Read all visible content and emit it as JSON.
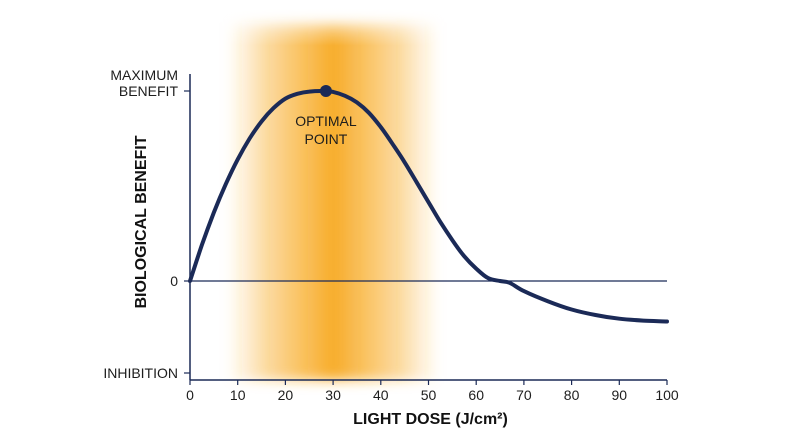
{
  "chart_data": {
    "type": "line",
    "title": "",
    "xlabel": "LIGHT DOSE (J/cm²)",
    "ylabel": "BIOLOGICAL BENEFIT",
    "x_ticks": [
      "0",
      "10",
      "20",
      "30",
      "40",
      "50",
      "60",
      "70",
      "80",
      "90",
      "100"
    ],
    "xlim": [
      0,
      100
    ],
    "ylim": [
      -1,
      1
    ],
    "y_tick_labels": [
      {
        "value": 1,
        "lines": [
          "MAXIMUM",
          "BENEFIT"
        ]
      },
      {
        "value": 0,
        "lines": [
          "0"
        ]
      },
      {
        "value": -1,
        "lines": [
          "INHIBITION"
        ]
      }
    ],
    "grid": false,
    "highlight_band": {
      "x_range": [
        10,
        50
      ],
      "peak_x": 28.5,
      "color": "#f7a81e"
    },
    "series": [
      {
        "color": "#1b2a57",
        "points": [
          [
            0,
            0
          ],
          [
            2.5,
            0.19
          ],
          [
            5,
            0.36
          ],
          [
            7.5,
            0.51
          ],
          [
            10,
            0.64
          ],
          [
            12.5,
            0.75
          ],
          [
            15,
            0.84
          ],
          [
            17.5,
            0.91
          ],
          [
            20,
            0.96
          ],
          [
            22.5,
            0.985
          ],
          [
            25,
            0.997
          ],
          [
            28,
            1.0
          ],
          [
            30,
            0.995
          ],
          [
            32.5,
            0.975
          ],
          [
            35,
            0.94
          ],
          [
            37.5,
            0.885
          ],
          [
            40,
            0.81
          ],
          [
            42.5,
            0.72
          ],
          [
            45,
            0.625
          ],
          [
            47.5,
            0.52
          ],
          [
            50,
            0.415
          ],
          [
            52.5,
            0.31
          ],
          [
            55,
            0.215
          ],
          [
            57.5,
            0.13
          ],
          [
            60,
            0.065
          ],
          [
            62.5,
            0.015
          ],
          [
            65,
            0.0
          ],
          [
            67,
            -0.02
          ],
          [
            70,
            -0.11
          ],
          [
            75,
            -0.22
          ],
          [
            80,
            -0.31
          ],
          [
            85,
            -0.37
          ],
          [
            90,
            -0.41
          ],
          [
            95,
            -0.43
          ],
          [
            100,
            -0.44
          ]
        ]
      }
    ],
    "annotations": [
      {
        "x": 28.5,
        "y": 1.0,
        "marker": "dot",
        "lines": [
          "OPTIMAL",
          "POINT"
        ]
      }
    ]
  }
}
